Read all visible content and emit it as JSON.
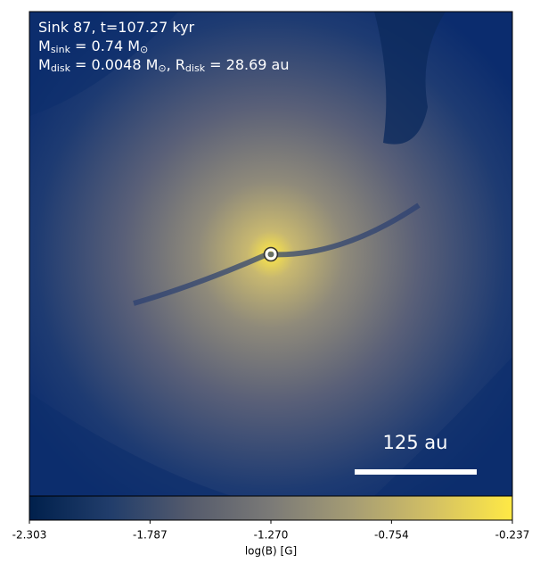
{
  "chart_data": {
    "type": "image",
    "annotations": [
      [
        {
          "text": "Sink 87, t=107.27 kyr"
        }
      ],
      [
        {
          "text": "M"
        },
        {
          "sub": "sink"
        },
        {
          "text": " = 0.74 M"
        },
        {
          "sub": "⊙"
        }
      ],
      [
        {
          "text": "M"
        },
        {
          "sub": "disk"
        },
        {
          "text": " = 0.0048 M"
        },
        {
          "sub": "⊙"
        },
        {
          "text": ", R"
        },
        {
          "sub": "disk"
        },
        {
          "text": " = 28.69 au"
        }
      ]
    ],
    "scale_bar": {
      "label": "125 au"
    },
    "colorbar": {
      "label": "log(B) [G]",
      "lim": [
        -2.303,
        -0.237
      ],
      "ticks": [
        -2.303,
        -1.787,
        {
          "value": -1.27,
          "label": "-1.270"
        },
        -0.754,
        -0.237
      ],
      "colormap": [
        "#00204c",
        "#213d6b",
        "#555b6c",
        "#7b7a77",
        "#a59c74",
        "#d3c064",
        "#ffe945"
      ]
    }
  }
}
